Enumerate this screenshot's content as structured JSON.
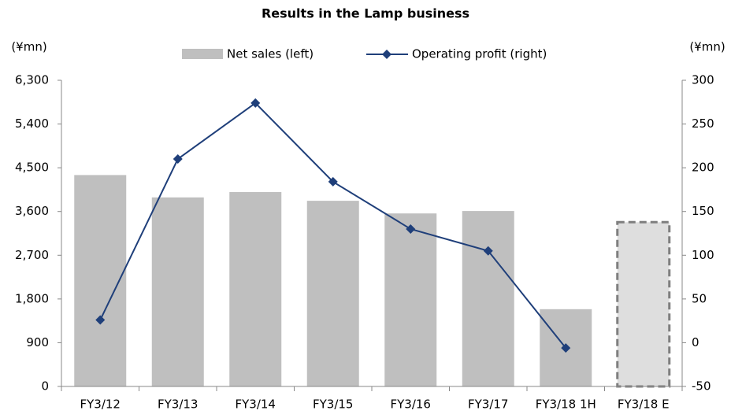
{
  "chart_data": {
    "type": "bar_line",
    "title": "Results in the Lamp business",
    "y_unit": "(¥mn)",
    "y2_unit": "(¥mn)",
    "categories": [
      "FY3/12",
      "FY3/13",
      "FY3/14",
      "FY3/15",
      "FY3/16",
      "FY3/17",
      "FY3/18 1H",
      "FY3/18 E"
    ],
    "series": [
      {
        "name": "Net sales (left)",
        "type": "bar",
        "color": "#bfbfbf",
        "values": [
          4350,
          3890,
          4000,
          3820,
          3560,
          3610,
          1590,
          3380
        ],
        "colors": [
          "#bfbfbf",
          "#bfbfbf",
          "#bfbfbf",
          "#bfbfbf",
          "#bfbfbf",
          "#bfbfbf",
          "#bfbfbf",
          "#dedede"
        ],
        "border_colors": [
          null,
          null,
          null,
          null,
          null,
          null,
          null,
          "#7f7f7f"
        ]
      },
      {
        "name": "Operating profit (right)",
        "type": "line",
        "axis": "y2",
        "color": "#1f3f7a",
        "values": [
          26,
          210,
          274,
          184,
          130,
          105,
          -6,
          null
        ]
      }
    ],
    "ylim": [
      0,
      6300
    ],
    "yticks": [
      0,
      {
        "value": 900,
        "label": "900"
      },
      {
        "value": 1800,
        "label": "1,800"
      },
      {
        "value": 2700,
        "label": "2,700"
      },
      {
        "value": 3600,
        "label": "3,600"
      },
      {
        "value": 4500,
        "label": "4,500"
      },
      {
        "value": 5400,
        "label": "5,400"
      },
      {
        "value": 6300,
        "label": "6,300"
      }
    ],
    "y2lim": [
      -50,
      300
    ],
    "y2ticks": [
      -50,
      0,
      50,
      100,
      150,
      200,
      250,
      300
    ],
    "grid": false
  }
}
